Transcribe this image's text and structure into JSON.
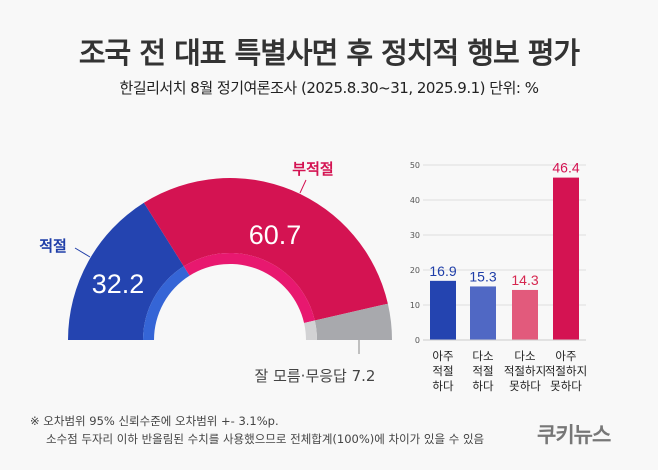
{
  "header": {
    "title": "조국 전 대표 특별사면 후 정치적 행보 평가",
    "subtitle": "한길리서치 8월 정기여론조사 (2025.8.30~31, 2025.9.1) 단위: %"
  },
  "chart_data": [
    {
      "type": "pie",
      "style": "half-donut",
      "slices": [
        {
          "label": "적절",
          "value": 32.2,
          "color": "#2444b0",
          "inner_color": "#3565d6"
        },
        {
          "label": "부적절",
          "value": 60.7,
          "color": "#d41352",
          "inner_color": "#e8186f"
        },
        {
          "label": "잘 모름·무응답",
          "value": 7.2,
          "color": "#a8a9ad",
          "inner_color": "#d2d2d4"
        }
      ]
    },
    {
      "type": "bar",
      "categories": [
        [
          "아주",
          "적절",
          "하다"
        ],
        [
          "다소",
          "적절",
          "하다"
        ],
        [
          "다소",
          "적절하지",
          "못하다"
        ],
        [
          "아주",
          "적절하지",
          "못하다"
        ]
      ],
      "values": [
        16.9,
        15.3,
        14.3,
        46.4
      ],
      "colors": [
        "#2444b0",
        "#5068c4",
        "#e25a7c",
        "#d41352"
      ],
      "label_colors": [
        "#1f3ea8",
        "#1f3ea8",
        "#d6264f",
        "#d41352"
      ],
      "ylim": [
        0,
        50
      ],
      "yticks": [
        0,
        10,
        20,
        30,
        40,
        50
      ],
      "grid": true
    }
  ],
  "footer": {
    "note1": "※ 오차범위 95% 신뢰수준에 오차범위 +- 3.1%p.",
    "note2": "소수점 두자리 이하 반올림된 수치를 사용했으므로 전체합계(100%)에 차이가 있을 수 있음",
    "logo": "쿠키뉴스"
  }
}
